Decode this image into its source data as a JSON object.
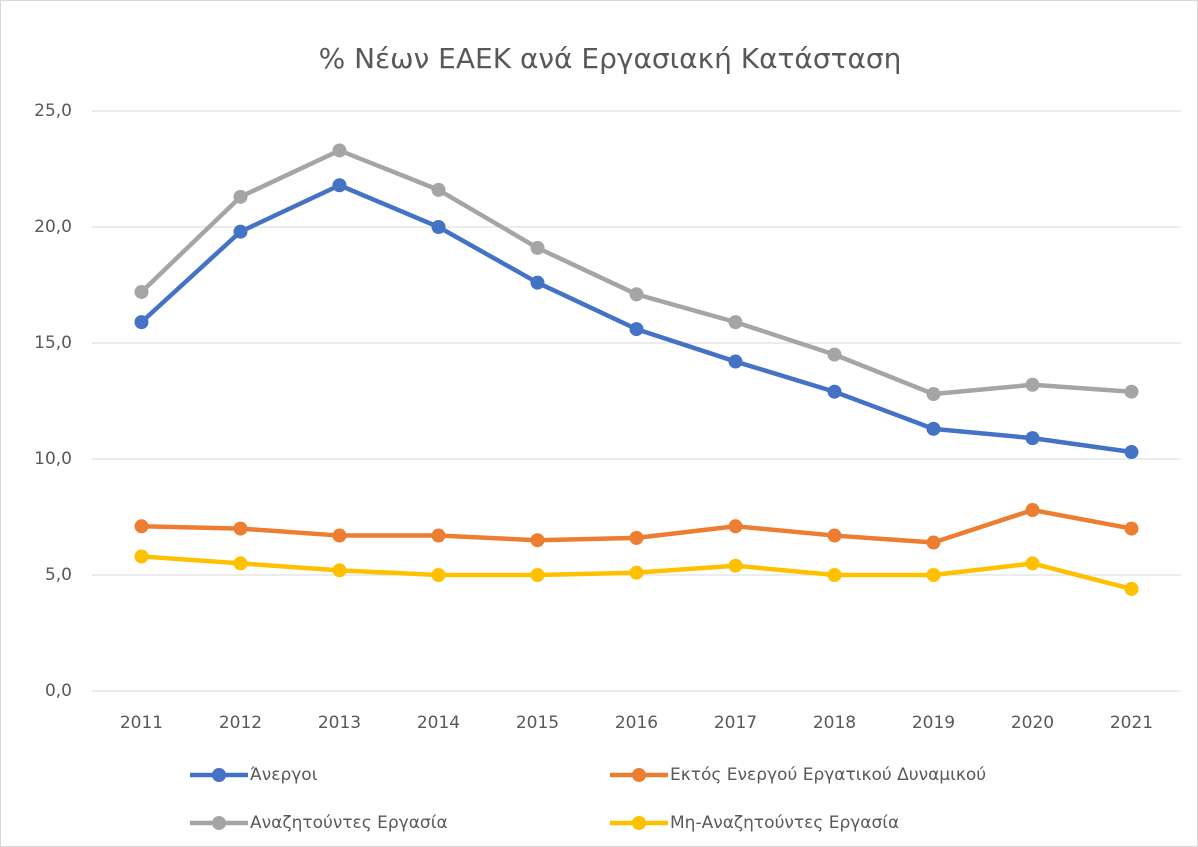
{
  "chart_data": {
    "type": "line",
    "title": "% Νέων ΕΑΕΚ ανά Εργασιακή Κατάσταση",
    "categories": [
      "2011",
      "2012",
      "2013",
      "2014",
      "2015",
      "2016",
      "2017",
      "2018",
      "2019",
      "2020",
      "2021"
    ],
    "series": [
      {
        "name": "Άνεργοι",
        "color": "#4472c4",
        "values": [
          15.9,
          19.8,
          21.8,
          20.0,
          17.6,
          15.6,
          14.2,
          12.9,
          11.3,
          10.9,
          10.3
        ]
      },
      {
        "name": "Εκτός Ενεργού Εργατικού Δυναμικού",
        "color": "#ed7d31",
        "values": [
          7.1,
          7.0,
          6.7,
          6.7,
          6.5,
          6.6,
          7.1,
          6.7,
          6.4,
          7.8,
          7.0
        ]
      },
      {
        "name": "Αναζητούντες Εργασία",
        "color": "#a5a5a5",
        "values": [
          17.2,
          21.3,
          23.3,
          21.6,
          19.1,
          17.1,
          15.9,
          14.5,
          12.8,
          13.2,
          12.9
        ]
      },
      {
        "name": "Μη-Αναζητούντες Εργασία",
        "color": "#ffc000",
        "values": [
          5.8,
          5.5,
          5.2,
          5.0,
          5.0,
          5.1,
          5.4,
          5.0,
          5.0,
          5.5,
          4.4
        ]
      }
    ],
    "ylim": [
      0,
      25
    ],
    "yticks": [
      {
        "value": 0,
        "label": "0,0"
      },
      {
        "value": 5,
        "label": "5,0"
      },
      {
        "value": 10,
        "label": "10,0"
      },
      {
        "value": 15,
        "label": "15,0"
      },
      {
        "value": 20,
        "label": "20,0"
      },
      {
        "value": 25,
        "label": "25,0"
      }
    ],
    "grid": true,
    "legend": "bottom"
  }
}
